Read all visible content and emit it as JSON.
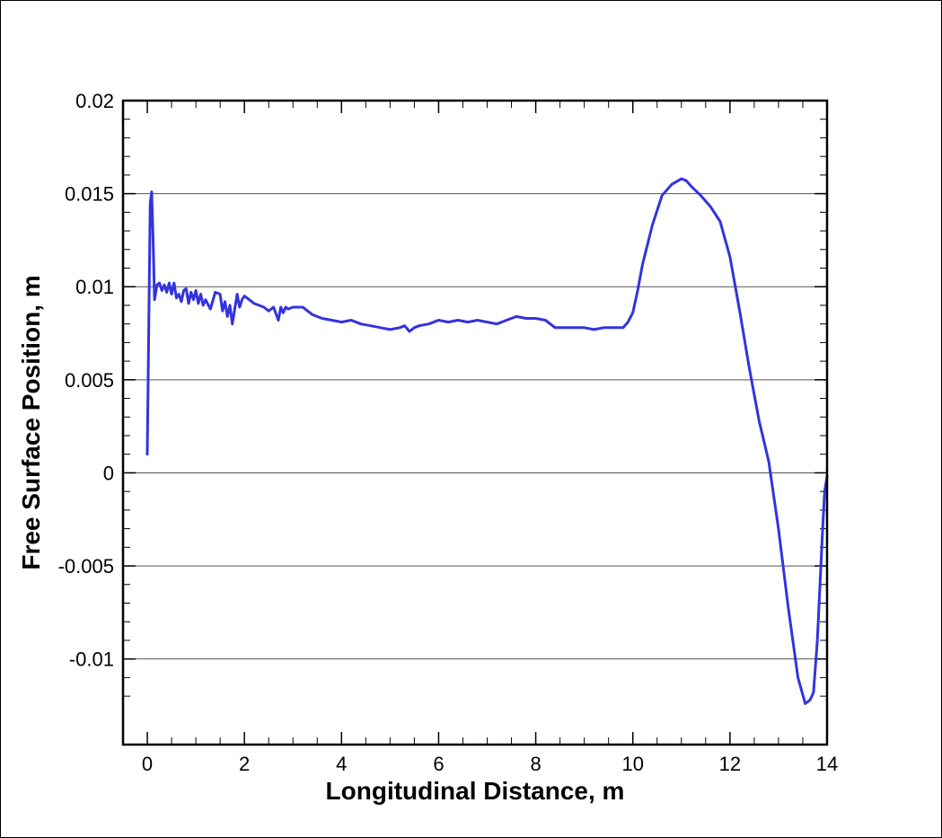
{
  "chart_data": {
    "type": "line",
    "title": "",
    "xlabel": "Longitudinal Distance, m",
    "ylabel": "Free Surface Position, m",
    "xlim": [
      -0.5,
      14
    ],
    "ylim": [
      -0.0146,
      0.02
    ],
    "x_ticks": [
      0,
      2,
      4,
      6,
      8,
      10,
      12,
      14
    ],
    "x_tick_labels": [
      "0",
      "2",
      "4",
      "6",
      "8",
      "10",
      "12",
      "14"
    ],
    "y_ticks": [
      -0.01,
      -0.005,
      0,
      0.005,
      0.01,
      0.015,
      0.02
    ],
    "y_tick_labels": [
      "-0.01",
      "-0.005",
      "0",
      "0.005",
      "0.01",
      "0.015",
      "0.02"
    ],
    "grid": "horizontal",
    "series_color": "#3333dd",
    "series": [
      {
        "x": [
          0.0,
          0.03,
          0.06,
          0.09,
          0.12,
          0.15,
          0.2,
          0.25,
          0.3,
          0.35,
          0.4,
          0.45,
          0.5,
          0.55,
          0.6,
          0.65,
          0.7,
          0.75,
          0.8,
          0.85,
          0.9,
          0.95,
          1.0,
          1.05,
          1.1,
          1.15,
          1.2,
          1.3,
          1.4,
          1.5,
          1.55,
          1.6,
          1.65,
          1.7,
          1.75,
          1.8,
          1.85,
          1.9,
          1.95,
          2.0,
          2.1,
          2.2,
          2.3,
          2.4,
          2.5,
          2.6,
          2.7,
          2.75,
          2.8,
          2.85,
          2.9,
          3.0,
          3.2,
          3.4,
          3.6,
          3.8,
          4.0,
          4.2,
          4.4,
          4.6,
          4.8,
          5.0,
          5.2,
          5.3,
          5.4,
          5.5,
          5.6,
          5.8,
          6.0,
          6.2,
          6.4,
          6.6,
          6.8,
          7.0,
          7.2,
          7.4,
          7.6,
          7.8,
          8.0,
          8.2,
          8.4,
          8.6,
          8.8,
          9.0,
          9.2,
          9.4,
          9.6,
          9.8,
          9.9,
          10.0,
          10.1,
          10.2,
          10.4,
          10.6,
          10.8,
          11.0,
          11.1,
          11.2,
          11.4,
          11.6,
          11.8,
          12.0,
          12.2,
          12.4,
          12.6,
          12.8,
          13.0,
          13.2,
          13.4,
          13.55,
          13.65,
          13.72,
          13.8,
          13.9,
          13.95,
          14.0
        ],
        "y": [
          0.001,
          0.008,
          0.0145,
          0.0151,
          0.0125,
          0.0093,
          0.0101,
          0.0102,
          0.0098,
          0.0101,
          0.0097,
          0.0102,
          0.0096,
          0.0102,
          0.0094,
          0.0096,
          0.0092,
          0.0098,
          0.0099,
          0.0091,
          0.0097,
          0.0093,
          0.0098,
          0.0091,
          0.0096,
          0.009,
          0.0093,
          0.0088,
          0.0097,
          0.0096,
          0.0087,
          0.0092,
          0.0084,
          0.009,
          0.008,
          0.0088,
          0.0096,
          0.0089,
          0.0093,
          0.0095,
          0.0093,
          0.0091,
          0.009,
          0.0089,
          0.0087,
          0.0089,
          0.0082,
          0.0089,
          0.0086,
          0.0089,
          0.0088,
          0.0089,
          0.0089,
          0.0085,
          0.0083,
          0.0082,
          0.0081,
          0.0082,
          0.008,
          0.0079,
          0.0078,
          0.0077,
          0.0078,
          0.0079,
          0.0076,
          0.0078,
          0.0079,
          0.008,
          0.0082,
          0.0081,
          0.0082,
          0.0081,
          0.0082,
          0.0081,
          0.008,
          0.0082,
          0.0084,
          0.0083,
          0.0083,
          0.0082,
          0.0078,
          0.0078,
          0.0078,
          0.0078,
          0.0077,
          0.0078,
          0.0078,
          0.0078,
          0.0081,
          0.0086,
          0.0098,
          0.0112,
          0.0133,
          0.0149,
          0.0155,
          0.0158,
          0.0157,
          0.0154,
          0.0149,
          0.0143,
          0.0135,
          0.0116,
          0.0087,
          0.0056,
          0.0028,
          0.0006,
          -0.003,
          -0.0072,
          -0.011,
          -0.0124,
          -0.0122,
          -0.0118,
          -0.009,
          -0.0035,
          -0.001,
          -0.0002
        ]
      }
    ]
  }
}
